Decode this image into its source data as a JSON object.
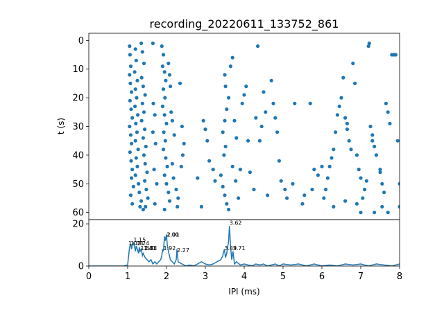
{
  "chart_data": [
    {
      "type": "scatter",
      "title": "recording_20220611_133752_861",
      "ylabel": "t (s)",
      "xlabel": "",
      "xlim": [
        0,
        8
      ],
      "ylim": [
        62.5,
        -2.5
      ],
      "y_inverted": true,
      "yticks": [
        0,
        10,
        20,
        30,
        40,
        50,
        60
      ],
      "marker_color": "#1f77b4",
      "grid": false,
      "points": [
        [
          1.05,
          2
        ],
        [
          1.06,
          5
        ],
        [
          1.08,
          9
        ],
        [
          1.05,
          12
        ],
        [
          1.07,
          15
        ],
        [
          1.1,
          18
        ],
        [
          1.06,
          21
        ],
        [
          1.09,
          24
        ],
        [
          1.12,
          27
        ],
        [
          1.05,
          30
        ],
        [
          1.08,
          33
        ],
        [
          1.1,
          36
        ],
        [
          1.06,
          39
        ],
        [
          1.09,
          42
        ],
        [
          1.12,
          45
        ],
        [
          1.1,
          48
        ],
        [
          1.15,
          51
        ],
        [
          1.08,
          54
        ],
        [
          1.12,
          57
        ],
        [
          1.2,
          3
        ],
        [
          1.22,
          7
        ],
        [
          1.18,
          11
        ],
        [
          1.25,
          14
        ],
        [
          1.2,
          17
        ],
        [
          1.23,
          20
        ],
        [
          1.19,
          23
        ],
        [
          1.26,
          26
        ],
        [
          1.21,
          29
        ],
        [
          1.24,
          32
        ],
        [
          1.2,
          35
        ],
        [
          1.27,
          38
        ],
        [
          1.22,
          41
        ],
        [
          1.25,
          44
        ],
        [
          1.2,
          47
        ],
        [
          1.28,
          50
        ],
        [
          1.3,
          53
        ],
        [
          1.35,
          56
        ],
        [
          1.4,
          59
        ],
        [
          1.32,
          58
        ],
        [
          1.35,
          1
        ],
        [
          1.38,
          4
        ],
        [
          1.42,
          8
        ],
        [
          1.36,
          13
        ],
        [
          1.4,
          16
        ],
        [
          1.45,
          19
        ],
        [
          1.38,
          22
        ],
        [
          1.42,
          25
        ],
        [
          1.36,
          28
        ],
        [
          1.44,
          31
        ],
        [
          1.4,
          34
        ],
        [
          1.47,
          37
        ],
        [
          1.42,
          40
        ],
        [
          1.45,
          43
        ],
        [
          1.5,
          46
        ],
        [
          1.44,
          49
        ],
        [
          1.48,
          52
        ],
        [
          1.52,
          55
        ],
        [
          1.46,
          58
        ],
        [
          1.65,
          1
        ],
        [
          1.66,
          22
        ],
        [
          1.7,
          26
        ],
        [
          1.65,
          32
        ],
        [
          1.72,
          36
        ],
        [
          1.68,
          45
        ],
        [
          1.75,
          50
        ],
        [
          1.7,
          57
        ],
        [
          1.88,
          2
        ],
        [
          1.92,
          5
        ],
        [
          1.9,
          9
        ],
        [
          1.95,
          11
        ],
        [
          1.98,
          14
        ],
        [
          1.92,
          17
        ],
        [
          1.96,
          20
        ],
        [
          1.9,
          23
        ],
        [
          1.95,
          26
        ],
        [
          2.0,
          29
        ],
        [
          1.93,
          32
        ],
        [
          1.97,
          35
        ],
        [
          1.92,
          38
        ],
        [
          1.98,
          41
        ],
        [
          2.02,
          44
        ],
        [
          1.95,
          47
        ],
        [
          2.0,
          50
        ],
        [
          2.05,
          53
        ],
        [
          2.08,
          56
        ],
        [
          1.95,
          59
        ],
        [
          2.05,
          8
        ],
        [
          2.08,
          12
        ],
        [
          2.1,
          16
        ],
        [
          2.12,
          25
        ],
        [
          2.15,
          28
        ],
        [
          2.2,
          33
        ],
        [
          2.15,
          43
        ],
        [
          2.18,
          48
        ],
        [
          2.25,
          52
        ],
        [
          2.3,
          55
        ],
        [
          2.28,
          58
        ],
        [
          2.35,
          15
        ],
        [
          2.4,
          30
        ],
        [
          2.45,
          36
        ],
        [
          2.38,
          44
        ],
        [
          2.42,
          40
        ],
        [
          2.8,
          48
        ],
        [
          2.9,
          58
        ],
        [
          2.95,
          28
        ],
        [
          3.0,
          31
        ],
        [
          3.05,
          35
        ],
        [
          3.1,
          42
        ],
        [
          3.2,
          45
        ],
        [
          3.25,
          49
        ],
        [
          3.4,
          47
        ],
        [
          3.45,
          51
        ],
        [
          3.5,
          54
        ],
        [
          3.55,
          57
        ],
        [
          3.6,
          59
        ],
        [
          3.48,
          40
        ],
        [
          3.52,
          37
        ],
        [
          3.45,
          32
        ],
        [
          3.5,
          28
        ],
        [
          3.55,
          24
        ],
        [
          3.6,
          20
        ],
        [
          3.52,
          16
        ],
        [
          3.5,
          12
        ],
        [
          3.65,
          9
        ],
        [
          3.7,
          6
        ],
        [
          3.75,
          28
        ],
        [
          3.8,
          34
        ],
        [
          3.7,
          44
        ],
        [
          3.78,
          49
        ],
        [
          3.85,
          55
        ],
        [
          3.9,
          45
        ],
        [
          3.95,
          22
        ],
        [
          4.0,
          19
        ],
        [
          4.05,
          16
        ],
        [
          4.1,
          35
        ],
        [
          4.15,
          46
        ],
        [
          4.25,
          52
        ],
        [
          4.3,
          27
        ],
        [
          4.35,
          2
        ],
        [
          4.4,
          35
        ],
        [
          4.45,
          30
        ],
        [
          4.5,
          18
        ],
        [
          4.55,
          25
        ],
        [
          4.6,
          54
        ],
        [
          4.7,
          14
        ],
        [
          4.75,
          22
        ],
        [
          4.8,
          27
        ],
        [
          4.85,
          32
        ],
        [
          4.9,
          42
        ],
        [
          4.95,
          49
        ],
        [
          5.05,
          52
        ],
        [
          5.1,
          55
        ],
        [
          5.25,
          50
        ],
        [
          5.3,
          22
        ],
        [
          5.5,
          57
        ],
        [
          5.55,
          54
        ],
        [
          5.7,
          22
        ],
        [
          5.75,
          52
        ],
        [
          5.8,
          45
        ],
        [
          5.9,
          47
        ],
        [
          6.0,
          44
        ],
        [
          6.05,
          55
        ],
        [
          6.1,
          52
        ],
        [
          6.15,
          48
        ],
        [
          6.2,
          44
        ],
        [
          6.25,
          41
        ],
        [
          6.3,
          38
        ],
        [
          6.35,
          32
        ],
        [
          6.4,
          26
        ],
        [
          6.45,
          23
        ],
        [
          6.5,
          20
        ],
        [
          6.55,
          13
        ],
        [
          6.6,
          27
        ],
        [
          6.65,
          31
        ],
        [
          6.7,
          35
        ],
        [
          6.75,
          38
        ],
        [
          6.8,
          8
        ],
        [
          6.85,
          15
        ],
        [
          6.9,
          40
        ],
        [
          6.95,
          45
        ],
        [
          7.0,
          48
        ],
        [
          7.05,
          55
        ],
        [
          7.1,
          52
        ],
        [
          7.15,
          49
        ],
        [
          7.2,
          2
        ],
        [
          7.22,
          1
        ],
        [
          7.25,
          30
        ],
        [
          7.3,
          33
        ],
        [
          7.35,
          37
        ],
        [
          7.4,
          40
        ],
        [
          7.5,
          45
        ],
        [
          7.55,
          50
        ],
        [
          7.6,
          53
        ],
        [
          7.65,
          22
        ],
        [
          7.7,
          25
        ],
        [
          7.75,
          29
        ],
        [
          7.8,
          5
        ],
        [
          7.85,
          5
        ],
        [
          7.9,
          5
        ],
        [
          7.95,
          35
        ],
        [
          8.0,
          50
        ],
        [
          8.0,
          58
        ],
        [
          6.3,
          58
        ],
        [
          6.6,
          56
        ],
        [
          6.9,
          57
        ],
        [
          7.0,
          60
        ],
        [
          7.35,
          60
        ],
        [
          7.55,
          58
        ],
        [
          7.7,
          60
        ],
        [
          6.65,
          29
        ],
        [
          7.3,
          35
        ],
        [
          7.5,
          46
        ]
      ]
    },
    {
      "type": "line",
      "xlabel": "IPI (ms)",
      "ylabel": "",
      "xlim": [
        0,
        8
      ],
      "ylim": [
        0,
        22
      ],
      "xticks": [
        0,
        1,
        2,
        3,
        4,
        5,
        6,
        7,
        8
      ],
      "yticks": [
        0,
        20
      ],
      "line_color": "#1f77b4",
      "x": [
        0,
        0.5,
        0.9,
        1.0,
        1.02,
        1.05,
        1.08,
        1.1,
        1.12,
        1.15,
        1.18,
        1.2,
        1.22,
        1.25,
        1.28,
        1.3,
        1.32,
        1.35,
        1.38,
        1.4,
        1.45,
        1.5,
        1.55,
        1.6,
        1.65,
        1.7,
        1.75,
        1.8,
        1.85,
        1.88,
        1.9,
        1.92,
        1.95,
        1.97,
        2.0,
        2.02,
        2.05,
        2.1,
        2.15,
        2.2,
        2.25,
        2.27,
        2.3,
        2.4,
        2.5,
        2.6,
        2.7,
        2.8,
        2.9,
        3.0,
        3.1,
        3.2,
        3.3,
        3.4,
        3.45,
        3.49,
        3.52,
        3.55,
        3.6,
        3.62,
        3.65,
        3.68,
        3.71,
        3.75,
        3.8,
        3.9,
        4.0,
        4.1,
        4.2,
        4.3,
        4.4,
        4.5,
        4.6,
        4.7,
        4.8,
        4.9,
        5.0,
        5.2,
        5.4,
        5.6,
        5.8,
        6.0,
        6.2,
        6.4,
        6.6,
        6.8,
        7.0,
        7.2,
        7.4,
        7.6,
        7.8,
        8.0
      ],
      "y": [
        0,
        0,
        0,
        0.5,
        4,
        9,
        10.5,
        8,
        10,
        11,
        9,
        7,
        9.5,
        8,
        6,
        9,
        7,
        8,
        5,
        6,
        4,
        3,
        2,
        3,
        1,
        2,
        1,
        2,
        3,
        5,
        8,
        7,
        14,
        12,
        15,
        10,
        7,
        3,
        2,
        1,
        3,
        8,
        2,
        1,
        0,
        0.5,
        0,
        1,
        2,
        1,
        0.5,
        1,
        2,
        3,
        5,
        8,
        4,
        6,
        12,
        19,
        9,
        3,
        7,
        1,
        2,
        0.5,
        1,
        0.5,
        0,
        1,
        0.5,
        1,
        0,
        0.5,
        1,
        0,
        1,
        0.5,
        1,
        0,
        1,
        0,
        0.5,
        0,
        1,
        0.5,
        1,
        0,
        1,
        0.5,
        0,
        1
      ],
      "annotations": [
        {
          "x": 1.15,
          "y": 11.5,
          "text": "1.15"
        },
        {
          "x": 1.02,
          "y": 9.8,
          "text": "1.02"
        },
        {
          "x": 1.08,
          "y": 9.8,
          "text": "1.08"
        },
        {
          "x": 1.24,
          "y": 9.8,
          "text": "1.24"
        },
        {
          "x": 1.33,
          "y": 7.5,
          "text": "1.33"
        },
        {
          "x": 1.41,
          "y": 7.5,
          "text": "1.41"
        },
        {
          "x": 1.44,
          "y": 7.5,
          "text": "1.44"
        },
        {
          "x": 2.0,
          "y": 14,
          "text": "2.00"
        },
        {
          "x": 2.01,
          "y": 14,
          "text": "2.01"
        },
        {
          "x": 1.92,
          "y": 7.5,
          "text": "1.92"
        },
        {
          "x": 2.27,
          "y": 6.5,
          "text": "2.27"
        },
        {
          "x": 3.62,
          "y": 19.5,
          "text": "3.62"
        },
        {
          "x": 3.49,
          "y": 7.5,
          "text": "3.49"
        },
        {
          "x": 3.71,
          "y": 7.5,
          "text": "3.71"
        }
      ]
    }
  ]
}
